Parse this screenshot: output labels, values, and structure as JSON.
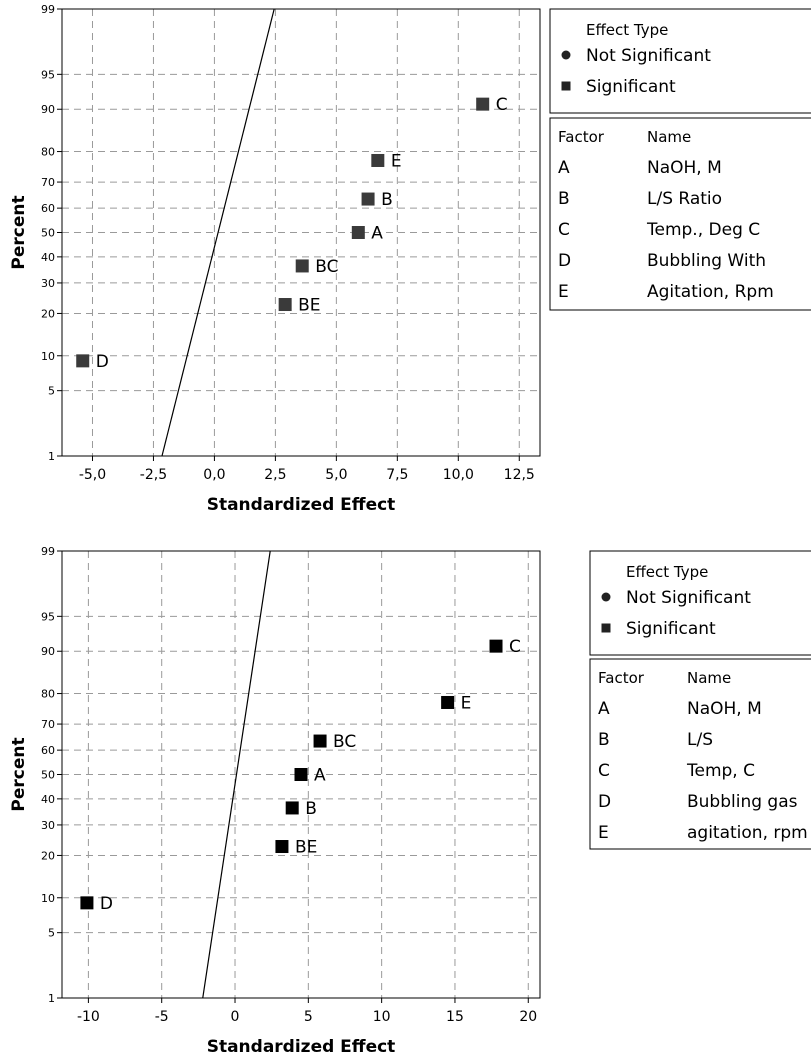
{
  "chart_data": [
    {
      "type": "scatter",
      "title": "",
      "xlabel": "Standardized Effect",
      "ylabel": "Percent",
      "xlim": [
        -6.25,
        13.35
      ],
      "x_ticks": [
        -5.0,
        -2.5,
        0.0,
        2.5,
        5.0,
        7.5,
        10.0,
        12.5
      ],
      "x_tick_labels": [
        "-5,0",
        "-2,5",
        "0,0",
        "2,5",
        "5,0",
        "7,5",
        "10,0",
        "12,5"
      ],
      "y_ticks": [
        1,
        5,
        10,
        20,
        30,
        40,
        50,
        60,
        70,
        80,
        90,
        95,
        99
      ],
      "y_tick_labels": [
        "1",
        "5",
        "10",
        "20",
        "30",
        "40",
        "50",
        "60",
        "70",
        "80",
        "90",
        "95",
        "99"
      ],
      "ylim": [
        1,
        99
      ],
      "y_scale": "normal-probability",
      "grid": true,
      "reference_line": {
        "x_at_1": -2.15,
        "x_at_99": 2.45
      },
      "points": [
        {
          "label": "D",
          "x": -5.4,
          "y": 9.1
        },
        {
          "label": "BE",
          "x": 2.9,
          "y": 22.7
        },
        {
          "label": "BC",
          "x": 3.6,
          "y": 36.4
        },
        {
          "label": "A",
          "x": 5.9,
          "y": 50.0
        },
        {
          "label": "B",
          "x": 6.3,
          "y": 63.6
        },
        {
          "label": "E",
          "x": 6.7,
          "y": 77.3
        },
        {
          "label": "C",
          "x": 11.0,
          "y": 90.9
        }
      ],
      "legend": {
        "effect_type_title": "Effect Type",
        "effect_types": [
          {
            "label": "Not Significant",
            "marker": "circle"
          },
          {
            "label": "Significant",
            "marker": "square"
          }
        ],
        "factor_header": "Factor",
        "name_header": "Name",
        "factors": [
          {
            "factor": "A",
            "name": "NaOH, M"
          },
          {
            "factor": "B",
            "name": "L/S Ratio"
          },
          {
            "factor": "C",
            "name": "Temp., Deg C"
          },
          {
            "factor": "D",
            "name": "Bubbling With"
          },
          {
            "factor": "E",
            "name": "Agitation, Rpm"
          }
        ]
      },
      "marker_color": "#3a3a3a"
    },
    {
      "type": "scatter",
      "title": "",
      "xlabel": "Standardized Effect",
      "ylabel": "Percent",
      "xlim": [
        -11.8,
        20.8
      ],
      "x_ticks": [
        -10,
        -5,
        0,
        5,
        10,
        15,
        20
      ],
      "x_tick_labels": [
        "-10",
        "-5",
        "0",
        "5",
        "10",
        "15",
        "20"
      ],
      "y_ticks": [
        1,
        5,
        10,
        20,
        30,
        40,
        50,
        60,
        70,
        80,
        90,
        95,
        99
      ],
      "y_tick_labels": [
        "1",
        "5",
        "10",
        "20",
        "30",
        "40",
        "50",
        "60",
        "70",
        "80",
        "90",
        "95",
        "99"
      ],
      "ylim": [
        1,
        99
      ],
      "y_scale": "normal-probability",
      "grid": true,
      "reference_line": {
        "x_at_1": -2.2,
        "x_at_99": 2.4
      },
      "points": [
        {
          "label": "D",
          "x": -10.1,
          "y": 9.1
        },
        {
          "label": "BE",
          "x": 3.2,
          "y": 22.7
        },
        {
          "label": "B",
          "x": 3.9,
          "y": 36.4
        },
        {
          "label": "A",
          "x": 4.5,
          "y": 50.0
        },
        {
          "label": "BC",
          "x": 5.8,
          "y": 63.6
        },
        {
          "label": "E",
          "x": 14.5,
          "y": 77.3
        },
        {
          "label": "C",
          "x": 17.8,
          "y": 90.9
        }
      ],
      "legend": {
        "effect_type_title": "Effect Type",
        "effect_types": [
          {
            "label": "Not Significant",
            "marker": "circle"
          },
          {
            "label": "Significant",
            "marker": "square"
          }
        ],
        "factor_header": "Factor",
        "name_header": "Name",
        "factors": [
          {
            "factor": "A",
            "name": "NaOH, M"
          },
          {
            "factor": "B",
            "name": "L/S"
          },
          {
            "factor": "C",
            "name": "Temp, C"
          },
          {
            "factor": "D",
            "name": "Bubbling gas"
          },
          {
            "factor": "E",
            "name": "agitation, rpm"
          }
        ]
      },
      "marker_color": "#000000"
    }
  ]
}
